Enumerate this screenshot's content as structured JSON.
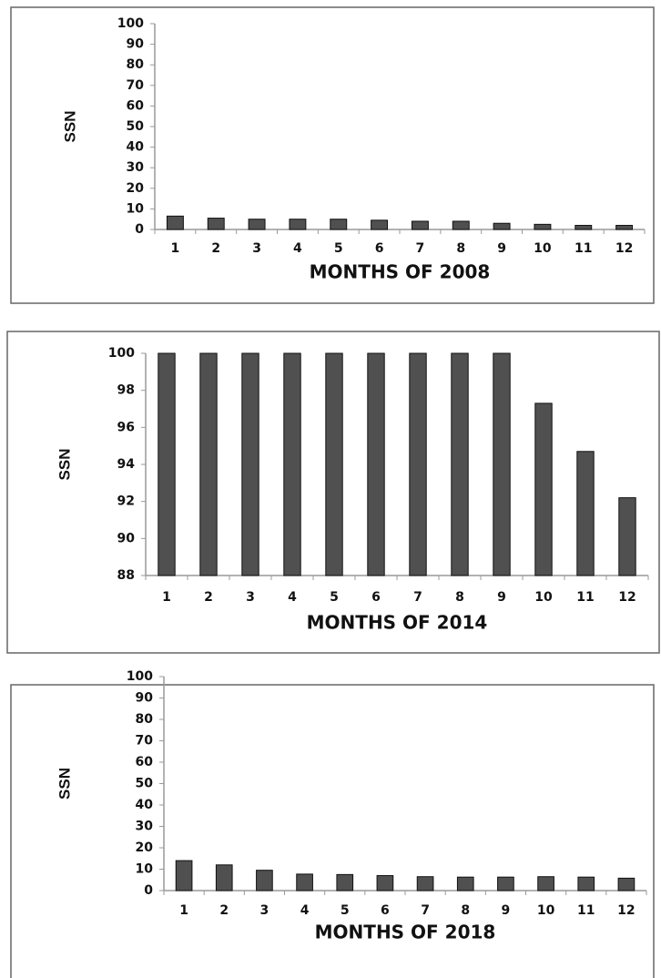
{
  "chart_data": [
    {
      "type": "bar",
      "x_label": "MONTHS OF 2008",
      "y_label": "SSN",
      "categories": [
        "1",
        "2",
        "3",
        "4",
        "5",
        "6",
        "7",
        "8",
        "9",
        "10",
        "11",
        "12"
      ],
      "values": [
        6.5,
        5.5,
        5,
        5,
        5,
        4.5,
        4,
        4,
        3,
        2.5,
        2,
        2
      ],
      "color": "#505050",
      "ylim": [
        0,
        100
      ],
      "yticks": [
        0,
        10,
        20,
        30,
        40,
        50,
        60,
        70,
        80,
        90,
        100
      ]
    },
    {
      "type": "bar",
      "x_label": "MONTHS OF 2014",
      "y_label": "SSN",
      "categories": [
        "1",
        "2",
        "3",
        "4",
        "5",
        "6",
        "7",
        "8",
        "9",
        "10",
        "11",
        "12"
      ],
      "values": [
        100,
        100,
        100,
        100,
        100,
        100,
        100,
        100,
        100,
        97.3,
        94.7,
        92.2
      ],
      "color": "#505050",
      "ylim": [
        88,
        100
      ],
      "yticks": [
        88,
        90,
        92,
        94,
        96,
        98,
        100
      ]
    },
    {
      "type": "bar",
      "x_label": "MONTHS OF 2018",
      "y_label": "SSN",
      "categories": [
        "1",
        "2",
        "3",
        "4",
        "5",
        "6",
        "7",
        "8",
        "9",
        "10",
        "11",
        "12"
      ],
      "values": [
        14,
        12,
        9.5,
        7.7,
        7.5,
        7,
        6.5,
        6.3,
        6.3,
        6.5,
        6.3,
        5.8
      ],
      "color": "#505050",
      "ylim": [
        0,
        100
      ],
      "yticks": [
        0,
        10,
        20,
        30,
        40,
        50,
        60,
        70,
        80,
        90,
        100
      ]
    }
  ]
}
